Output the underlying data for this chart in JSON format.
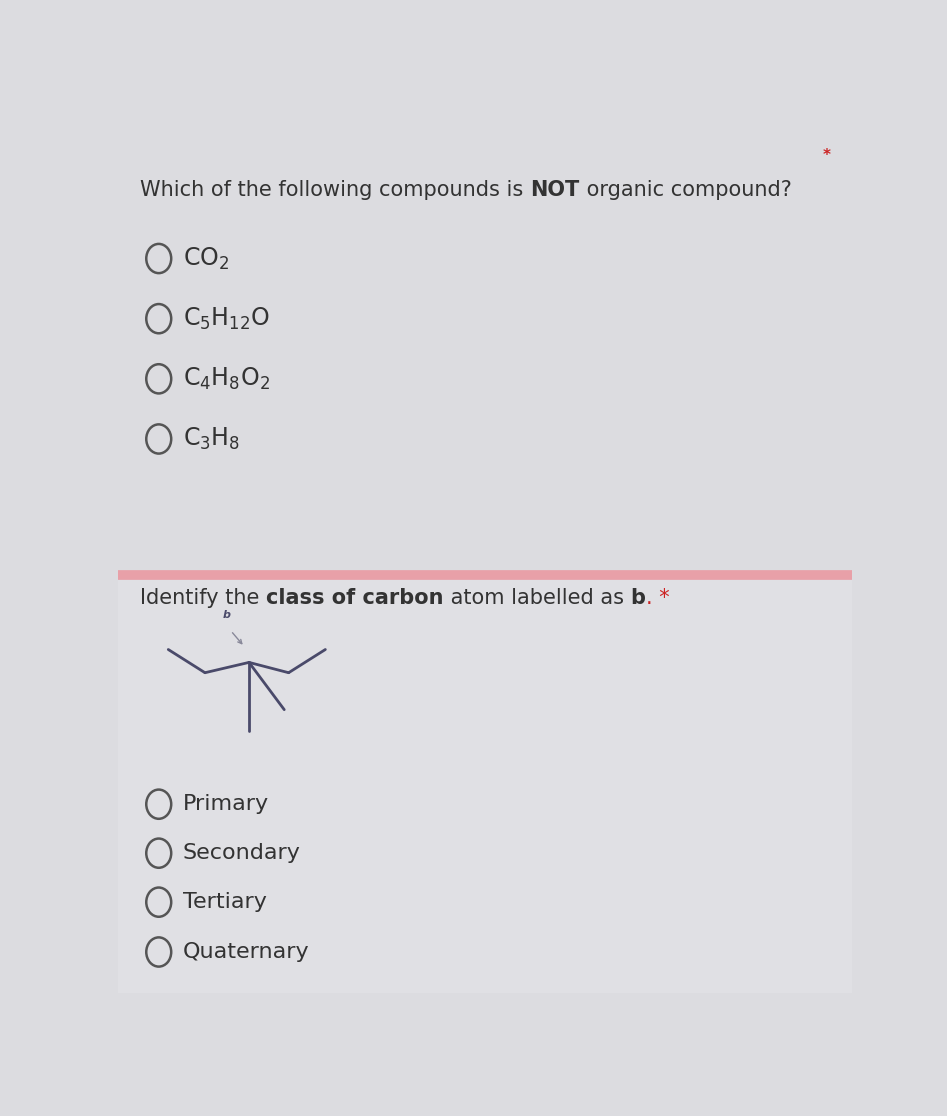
{
  "bg_color_top": "#dcdce0",
  "bg_color_bottom": "#e0e0e4",
  "divider_color": "#e8a0a8",
  "text_color": "#333333",
  "molecule_color": "#4a4a6a",
  "arrow_color": "#888899",
  "star_color": "#cc2222",
  "circle_color": "#555555",
  "font_size_title": 15,
  "font_size_options": 15,
  "options2": [
    "Primary",
    "Secondary",
    "Tertiary",
    "Quaternary"
  ]
}
